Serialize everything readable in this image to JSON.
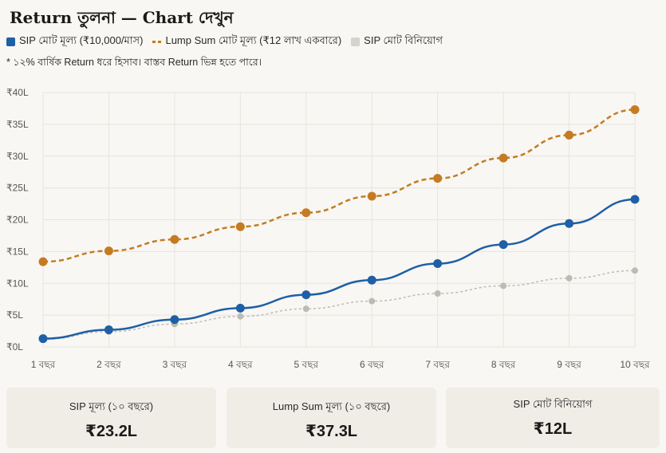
{
  "header": {
    "title": "Return তুলনা — Chart দেখুন",
    "note": "* ১২% বার্ষিক Return ধরে হিসাব। বাস্তব Return ভিন্ন হতে পারে।"
  },
  "legend": {
    "sip": "SIP মোট মূল্য (₹10,000/মাস)",
    "lump": "Lump Sum মোট মূল্য (₹12 লাখ একবারে)",
    "invest": "SIP মোট বিনিয়োগ"
  },
  "colors": {
    "sip": "#1f5fa6",
    "lump": "#c57b22",
    "invest": "#bdbbb5",
    "grid": "#e6e4de"
  },
  "chart_data": {
    "type": "line",
    "x": [
      "1 বছর",
      "2 বছর",
      "3 বছর",
      "4 বছর",
      "5 বছর",
      "6 বছর",
      "7 বছর",
      "8 বছর",
      "9 বছর",
      "10 বছর"
    ],
    "y_ticks": [
      "₹0L",
      "₹5L",
      "₹10L",
      "₹15L",
      "₹20L",
      "₹25L",
      "₹30L",
      "₹35L",
      "₹40L"
    ],
    "ylim": [
      0,
      40
    ],
    "grid": true,
    "legend_position": "top-left",
    "series": [
      {
        "name": "SIP মোট মূল্য (₹10,000/মাস)",
        "key": "sip",
        "style": "solid",
        "values": [
          1.3,
          2.7,
          4.3,
          6.1,
          8.2,
          10.5,
          13.1,
          16.1,
          19.4,
          23.2
        ]
      },
      {
        "name": "Lump Sum মোট মূল্য (₹12 লাখ একবারে)",
        "key": "lump",
        "style": "dashed",
        "values": [
          13.4,
          15.1,
          16.9,
          18.9,
          21.1,
          23.7,
          26.5,
          29.7,
          33.3,
          37.3
        ]
      },
      {
        "name": "SIP মোট বিনিয়োগ",
        "key": "invest",
        "style": "dotted",
        "values": [
          1.2,
          2.4,
          3.6,
          4.8,
          6.0,
          7.2,
          8.4,
          9.6,
          10.8,
          12.0
        ]
      }
    ]
  },
  "cards": [
    {
      "label": "SIP মূল্য (১০ বছরে)",
      "value": "₹23.2L"
    },
    {
      "label": "Lump Sum মূল্য (১০ বছরে)",
      "value": "₹37.3L"
    },
    {
      "label": "SIP মোট বিনিয়োগ",
      "value": "₹12L"
    }
  ]
}
